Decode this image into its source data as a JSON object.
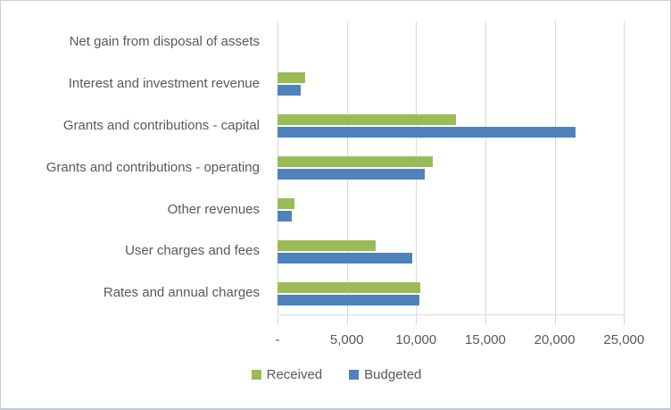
{
  "chart_data": {
    "type": "bar",
    "orientation": "horizontal",
    "title": "",
    "xlabel": "",
    "ylabel": "",
    "categories": [
      "Net gain from disposal of assets",
      "Interest and investment revenue",
      "Grants and contributions - capital",
      "Grants and contributions - operating",
      "Other revenues",
      "User charges and fees",
      "Rates and annual charges"
    ],
    "series": [
      {
        "name": "Received",
        "color": "#9bbb59",
        "values": [
          0,
          2000,
          12900,
          11200,
          1200,
          7100,
          10300
        ]
      },
      {
        "name": "Budgeted",
        "color": "#4f81bd",
        "values": [
          0,
          1700,
          21500,
          10600,
          1000,
          9700,
          10250
        ]
      }
    ],
    "x_axis": {
      "tick_labels": [
        "-",
        "5,000",
        "10,000",
        "15,000",
        "20,000",
        "25,000"
      ],
      "tick_values": [
        0,
        5000,
        10000,
        15000,
        20000,
        25000
      ],
      "min": 0,
      "max": 25000
    },
    "grid": true,
    "legend_position": "bottom"
  },
  "colors": {
    "received": "#9bbb59",
    "budgeted": "#4f81bd",
    "gridline": "#d9d9d9",
    "text": "#595959",
    "background": "#ffffff",
    "frame_border": "#cfcfcf"
  },
  "legend": {
    "items": [
      {
        "label": "Received",
        "color": "#9bbb59"
      },
      {
        "label": "Budgeted",
        "color": "#4f81bd"
      }
    ]
  }
}
